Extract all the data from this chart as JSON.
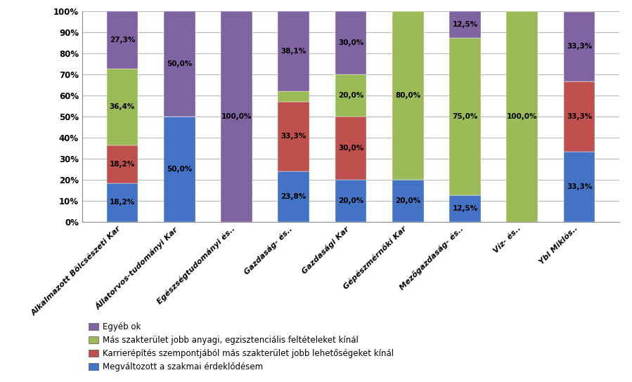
{
  "categories": [
    "Alkalmazott Bölcsészeti Kar",
    "Állatorvos-tudományi Kar",
    "Egészségtudományi és..",
    "Gazdaság- és..",
    "Gazdasági Kar",
    "Gépészmérnöki Kar",
    "Mezőgazdaság- és..",
    "Víz- és..",
    "Ybl Miklós.."
  ],
  "series": {
    "Megváltozott a szakmai érdeklődésem": [
      18.2,
      50.0,
      0.0,
      23.8,
      20.0,
      20.0,
      12.5,
      0.0,
      33.3
    ],
    "Karrierépítés szempontjából más szakterület jobb lehetőségeket kínál": [
      18.2,
      0.0,
      0.0,
      33.3,
      30.0,
      0.0,
      0.0,
      0.0,
      33.3
    ],
    "Más szakterület jobb anyagi, egzisztenciális feltételeket kínál": [
      36.4,
      0.0,
      0.0,
      4.8,
      20.0,
      80.0,
      75.0,
      100.0,
      0.0
    ],
    "Egyéb ok": [
      27.3,
      50.0,
      100.0,
      38.1,
      30.0,
      0.0,
      12.5,
      0.0,
      33.3
    ]
  },
  "colors": {
    "Megváltozott a szakmai érdeklődésem": "#4472C4",
    "Karrierépítés szempontjából más szakterület jobb lehetőségeket kínál": "#C0504D",
    "Más szakterület jobb anyagi, egzisztenciális feltételeket kínál": "#9BBB59",
    "Egyéb ok": "#8064A2"
  },
  "bar_labels": {
    "Megváltozott a szakmai érdeklődésem": [
      "18,2%",
      "50,0%",
      "",
      "23,8%",
      "20,0%",
      "20,0%",
      "12,5%",
      "",
      "33,3%"
    ],
    "Karrierépítés szempontjából más szakterület jobb lehetőségeket kínál": [
      "18,2%",
      "",
      "",
      "33,3%",
      "30,0%",
      "",
      "",
      "",
      "33,3%"
    ],
    "Más szakterület jobb anyagi, egzisztenciális feltételeket kínál": [
      "36,4%",
      "",
      "",
      "",
      "20,0%",
      "80,0%",
      "75,0%",
      "100,0%",
      ""
    ],
    "Egyéb ok": [
      "27,3%",
      "50,0%",
      "100,0%",
      "38,1%",
      "30,0%",
      "",
      "12,5%",
      "",
      "33,3%"
    ]
  },
  "ylim": [
    0,
    100
  ],
  "yticks": [
    0,
    10,
    20,
    30,
    40,
    50,
    60,
    70,
    80,
    90,
    100
  ],
  "ytick_labels": [
    "0%",
    "10%",
    "20%",
    "30%",
    "40%",
    "50%",
    "60%",
    "70%",
    "80%",
    "90%",
    "100%"
  ],
  "background_color": "#FFFFFF",
  "bar_width": 0.55,
  "legend_order": [
    "Egyéb ok",
    "Más szakterület jobb anyagi, egzisztenciális feltételeket kínál",
    "Karrierépítés szempontjából más szakterület jobb lehetőségeket kínál",
    "Megváltozott a szakmai érdeklődésem"
  ],
  "fig_width": 8.99,
  "fig_height": 5.44,
  "dpi": 100
}
